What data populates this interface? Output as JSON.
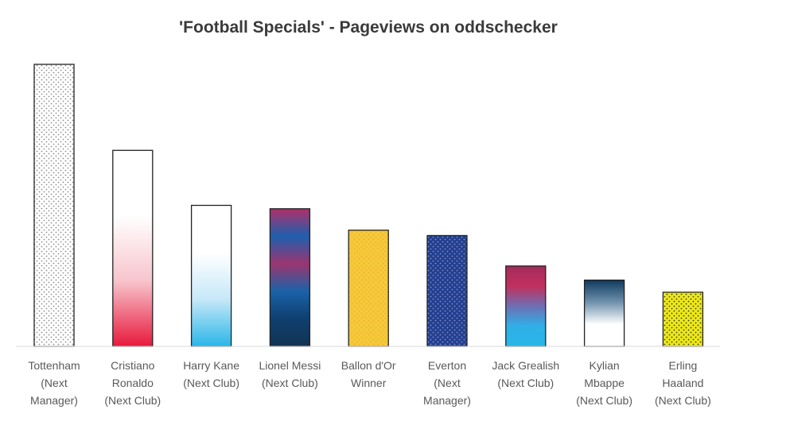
{
  "chart_data": {
    "type": "bar",
    "title": "'Football Specials' - Pageviews on oddschecker",
    "xlabel": "",
    "ylabel": "",
    "ylim": [
      0,
      100
    ],
    "grid": false,
    "legend": "none",
    "categories": [
      [
        "Tottenham",
        "(Next",
        "Manager)"
      ],
      [
        "Cristiano",
        "Ronaldo",
        "(Next Club)"
      ],
      [
        "Harry Kane",
        "(Next Club)"
      ],
      [
        "Lionel Messi",
        "(Next Club)"
      ],
      [
        "Ballon d'Or",
        "Winner"
      ],
      [
        "Everton",
        "(Next",
        "Manager)"
      ],
      [
        "Jack Grealish",
        "(Next Club)"
      ],
      [
        "Kylian",
        "Mbappe",
        "(Next Club)"
      ],
      [
        "Erling",
        "Haaland",
        "(Next Club)"
      ]
    ],
    "values": [
      100,
      69.5,
      50,
      48.8,
      41.2,
      39.3,
      28.5,
      23.5,
      19.2
    ],
    "bar_styles": [
      {
        "fill": "dots",
        "colors": [
          "#ffffff",
          "#8c8c8c"
        ]
      },
      {
        "fill": "gradient",
        "colors": [
          "#ffffff",
          "#ffffff",
          "#f7c4cc",
          "#e8193c"
        ]
      },
      {
        "fill": "gradient",
        "colors": [
          "#ffffff",
          "#ffffff",
          "#c6e8f8",
          "#29b6e8"
        ]
      },
      {
        "fill": "gradient",
        "colors": [
          "#b0306a",
          "#1f5fae",
          "#9b3570",
          "#1b62a8",
          "#0f3f70",
          "#123452"
        ]
      },
      {
        "fill": "dots",
        "colors": [
          "#f6c93a",
          "#e6b02a"
        ]
      },
      {
        "fill": "dots",
        "colors": [
          "#243f8f",
          "#7c92c9"
        ]
      },
      {
        "fill": "gradient",
        "colors": [
          "#a32c5c",
          "#c0305e",
          "#6e6fb3",
          "#2fb0e6",
          "#29b6e8"
        ]
      },
      {
        "fill": "gradient",
        "colors": [
          "#0f3a5e",
          "#6f92ad",
          "#ffffff",
          "#ffffff"
        ]
      },
      {
        "fill": "dots",
        "colors": [
          "#ece81a",
          "#3a3a10"
        ]
      }
    ]
  }
}
